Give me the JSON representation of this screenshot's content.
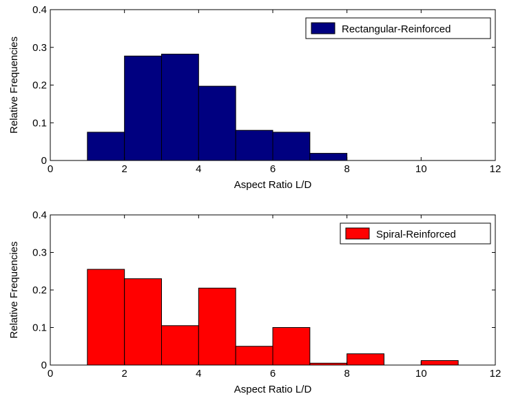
{
  "chart_data": [
    {
      "type": "bar",
      "bins": [
        [
          1,
          2
        ],
        [
          2,
          3
        ],
        [
          3,
          4
        ],
        [
          4,
          5
        ],
        [
          5,
          6
        ],
        [
          6,
          7
        ],
        [
          7,
          8
        ]
      ],
      "values": [
        0.075,
        0.277,
        0.282,
        0.197,
        0.08,
        0.075,
        0.019
      ],
      "title": "",
      "xlabel": "Aspect Ratio L/D",
      "ylabel": "Relative Frequencies",
      "xlim": [
        0,
        12
      ],
      "ylim": [
        0,
        0.4
      ],
      "xticks": [
        "0",
        "2",
        "4",
        "6",
        "8",
        "10",
        "12"
      ],
      "yticks": [
        "0",
        "0.1",
        "0.2",
        "0.3",
        "0.4"
      ],
      "legend": {
        "label": "Rectangular-Reinforced",
        "position": "top-right"
      },
      "color": "#000080",
      "grid": false
    },
    {
      "type": "bar",
      "bins": [
        [
          1,
          2
        ],
        [
          2,
          3
        ],
        [
          3,
          4
        ],
        [
          4,
          5
        ],
        [
          5,
          6
        ],
        [
          6,
          7
        ],
        [
          7,
          8
        ],
        [
          8,
          9
        ],
        [
          10,
          11
        ]
      ],
      "values": [
        0.255,
        0.23,
        0.105,
        0.205,
        0.05,
        0.1,
        0.005,
        0.03,
        0.012
      ],
      "title": "",
      "xlabel": "Aspect Ratio L/D",
      "ylabel": "Relative Frequencies",
      "xlim": [
        0,
        12
      ],
      "ylim": [
        0,
        0.4
      ],
      "xticks": [
        "0",
        "2",
        "4",
        "6",
        "8",
        "10",
        "12"
      ],
      "yticks": [
        "0",
        "0.1",
        "0.2",
        "0.3",
        "0.4"
      ],
      "legend": {
        "label": "Spiral-Reinforced",
        "position": "top-right"
      },
      "color": "#ff0000",
      "grid": false
    }
  ]
}
